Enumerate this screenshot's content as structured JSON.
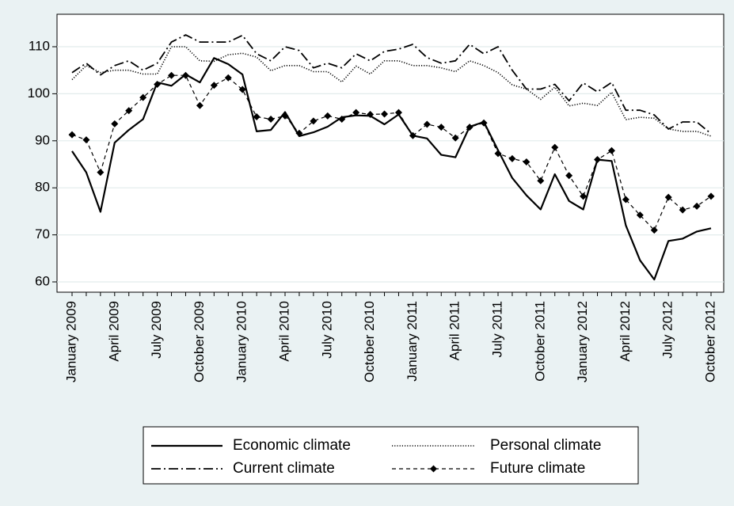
{
  "chart_data": {
    "type": "line",
    "title": "",
    "xlabel": "",
    "ylabel": "",
    "ylim": [
      59,
      115
    ],
    "yticks": [
      60,
      70,
      80,
      90,
      100,
      110
    ],
    "grid": true,
    "legend_placement": "bottom",
    "x": [
      "January 2009",
      "February 2009",
      "March 2009",
      "April 2009",
      "May 2009",
      "June 2009",
      "July 2009",
      "August 2009",
      "September 2009",
      "October 2009",
      "November 2009",
      "December 2009",
      "January 2010",
      "February 2010",
      "March 2010",
      "April 2010",
      "May 2010",
      "June 2010",
      "July 2010",
      "August 2010",
      "September 2010",
      "October 2010",
      "November 2010",
      "December 2010",
      "January 2011",
      "February 2011",
      "March 2011",
      "April 2011",
      "May 2011",
      "June 2011",
      "July 2011",
      "August 2011",
      "September 2011",
      "October 2011",
      "November 2011",
      "December 2011",
      "January 2012",
      "February 2012",
      "March 2012",
      "April 2012",
      "May 2012",
      "June 2012",
      "July 2012",
      "August 2012",
      "September 2012",
      "October 2012"
    ],
    "xtick_labels": [
      {
        "index": 0,
        "label": "January 2009"
      },
      {
        "index": 3,
        "label": "April 2009"
      },
      {
        "index": 6,
        "label": "July 2009"
      },
      {
        "index": 9,
        "label": "October 2009"
      },
      {
        "index": 12,
        "label": "January 2010"
      },
      {
        "index": 15,
        "label": "April 2010"
      },
      {
        "index": 18,
        "label": "July 2010"
      },
      {
        "index": 21,
        "label": "October 2010"
      },
      {
        "index": 24,
        "label": "January 2011"
      },
      {
        "index": 27,
        "label": "April 2011"
      },
      {
        "index": 30,
        "label": "July 2011"
      },
      {
        "index": 33,
        "label": "October 2011"
      },
      {
        "index": 36,
        "label": "January 2012"
      },
      {
        "index": 39,
        "label": "April 2012"
      },
      {
        "index": 42,
        "label": "July 2012"
      },
      {
        "index": 45,
        "label": "October 2012"
      }
    ],
    "series": [
      {
        "name": "Economic climate",
        "style": "solid",
        "color": "#000000",
        "values": [
          87.8,
          83.3,
          74.9,
          89.6,
          92.3,
          94.6,
          102.4,
          101.7,
          104.1,
          102.4,
          107.6,
          106.3,
          104.1,
          92,
          92.3,
          96.1,
          91,
          91.8,
          93,
          95,
          95.4,
          95.3,
          93.5,
          95.6,
          91.1,
          90.5,
          87,
          86.5,
          93,
          94,
          88,
          82.1,
          78.4,
          75.4,
          82.9,
          77.2,
          75.4,
          86,
          85.7,
          72,
          64.6,
          60.5,
          68.7,
          69.2,
          70.7,
          71.4
        ]
      },
      {
        "name": "Personal climate",
        "style": "dotted",
        "color": "#000000",
        "values": [
          103,
          106,
          104.5,
          105,
          105,
          104.2,
          104.2,
          110,
          110,
          107,
          106.9,
          108.3,
          108.6,
          107.8,
          104.9,
          106,
          106,
          104.7,
          104.7,
          102.5,
          105.9,
          104.2,
          107,
          107,
          106,
          106,
          105.5,
          104.7,
          107,
          106,
          104.5,
          101.9,
          101,
          98.8,
          101.4,
          97.4,
          98,
          97.5,
          100.3,
          94.5,
          95,
          94.8,
          92.5,
          92,
          92,
          91
        ]
      },
      {
        "name": "Current climate",
        "style": "dash-dot",
        "color": "#000000",
        "values": [
          104.5,
          106.5,
          104,
          106,
          107,
          105,
          106.5,
          111,
          112.5,
          111,
          111,
          111,
          112.4,
          108.5,
          107,
          110,
          109.2,
          105.5,
          106.5,
          105.5,
          108.5,
          107,
          109,
          109.5,
          110.5,
          107.7,
          106.5,
          107,
          110.5,
          108.5,
          110,
          105,
          101,
          101,
          102,
          98.5,
          102.3,
          100.4,
          102.4,
          96.5,
          96.5,
          95.5,
          92.5,
          94,
          94,
          91.5
        ]
      },
      {
        "name": "Future climate",
        "style": "dashed-diamond",
        "color": "#000000",
        "values": [
          91.3,
          90.2,
          83.3,
          93.6,
          96.4,
          99.2,
          102,
          103.9,
          103.9,
          97.5,
          101.8,
          103.4,
          100.9,
          95.1,
          94.6,
          95.3,
          91.6,
          94.2,
          95.3,
          94.6,
          96,
          95.6,
          95.7,
          96,
          91.1,
          93.5,
          92.9,
          90.6,
          92.9,
          93.8,
          87.3,
          86.2,
          85.5,
          81.5,
          88.6,
          82.6,
          78.2,
          86,
          87.9,
          77.5,
          74.2,
          71,
          78,
          75.3,
          76.1,
          78.2
        ]
      }
    ]
  }
}
